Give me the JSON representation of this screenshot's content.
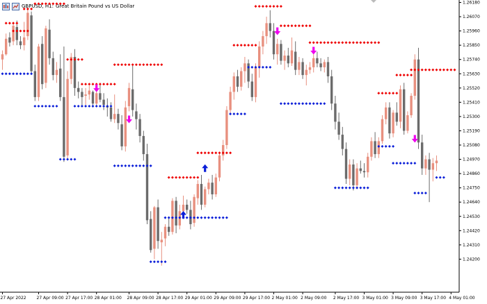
{
  "header": {
    "symbol": "GBPUSD, H1:",
    "description": "Great Britain Pound vs US Dollar"
  },
  "colors": {
    "bull": "#e8907f",
    "bear": "#6b6b6b",
    "resistance_dots": "#ee0000",
    "support_dots": "#0a1ed8",
    "sell_arrow": "#ee00ee",
    "buy_arrow": "#0a1ed8",
    "axis": "#000000"
  },
  "chart_data": {
    "type": "candlestick",
    "symbol": "GBPUSD",
    "timeframe": "H1",
    "y_axis": {
      "position": "right",
      "range": [
        1.2414,
        1.2618
      ],
      "ticks": [
        "1.26180",
        "1.26070",
        "1.25960",
        "1.25850",
        "1.25740",
        "1.25630",
        "1.25520",
        "1.25410",
        "1.25300",
        "1.25190",
        "1.25080",
        "1.24970",
        "1.24860",
        "1.24750",
        "1.24640",
        "1.24530",
        "1.24420",
        "1.24310",
        "1.24200"
      ]
    },
    "x_axis": {
      "labels": [
        {
          "bar": 0,
          "text": "27 Apr 2022"
        },
        {
          "bar": 10,
          "text": "27 Apr 09:00"
        },
        {
          "bar": 18,
          "text": "27 Apr 17:00"
        },
        {
          "bar": 26,
          "text": "28 Apr 01:00"
        },
        {
          "bar": 35,
          "text": "28 Apr 09:00"
        },
        {
          "bar": 43,
          "text": "28 Apr 17:00"
        },
        {
          "bar": 51,
          "text": "29 Apr 01:00"
        },
        {
          "bar": 59,
          "text": "29 Apr 09:00"
        },
        {
          "bar": 67,
          "text": "29 Apr 17:00"
        },
        {
          "bar": 75,
          "text": "2 May 01:00"
        },
        {
          "bar": 83,
          "text": "2 May 09:00"
        },
        {
          "bar": 92,
          "text": "2 May 17:00"
        },
        {
          "bar": 100,
          "text": "3 May 01:00"
        },
        {
          "bar": 108,
          "text": "3 May 09:00"
        },
        {
          "bar": 116,
          "text": "3 May 17:00"
        },
        {
          "bar": 124,
          "text": "4 May 01:00"
        }
      ]
    },
    "candles": [
      [
        1.2574,
        1.2581,
        1.2566,
        1.2578
      ],
      [
        1.2578,
        1.2594,
        1.2577,
        1.259
      ],
      [
        1.2591,
        1.2595,
        1.2584,
        1.2587
      ],
      [
        1.2588,
        1.2603,
        1.2585,
        1.26
      ],
      [
        1.2599,
        1.2604,
        1.2585,
        1.2589
      ],
      [
        1.2588,
        1.2592,
        1.2582,
        1.2585
      ],
      [
        1.2585,
        1.2603,
        1.2581,
        1.2591
      ],
      [
        1.2592,
        1.2613,
        1.2589,
        1.261
      ],
      [
        1.2608,
        1.2611,
        1.2563,
        1.2565
      ],
      [
        1.2565,
        1.257,
        1.2542,
        1.2545
      ],
      [
        1.2545,
        1.2586,
        1.2542,
        1.2584
      ],
      [
        1.2586,
        1.2592,
        1.2551,
        1.2555
      ],
      [
        1.2556,
        1.26,
        1.2552,
        1.2598
      ],
      [
        1.2597,
        1.2605,
        1.257,
        1.2575
      ],
      [
        1.2575,
        1.258,
        1.2558,
        1.2562
      ],
      [
        1.2562,
        1.2572,
        1.2556,
        1.2566
      ],
      [
        1.2567,
        1.2578,
        1.2542,
        1.2545
      ],
      [
        1.2545,
        1.2584,
        1.2495,
        1.2499
      ],
      [
        1.25,
        1.2565,
        1.2497,
        1.2559
      ],
      [
        1.2559,
        1.2579,
        1.2555,
        1.2576
      ],
      [
        1.2576,
        1.2582,
        1.2546,
        1.2552
      ],
      [
        1.2552,
        1.2557,
        1.2544,
        1.2549
      ],
      [
        1.2549,
        1.2552,
        1.2538,
        1.2545
      ],
      [
        1.2546,
        1.2552,
        1.2539,
        1.2547
      ],
      [
        1.2547,
        1.2554,
        1.2543,
        1.255
      ],
      [
        1.2549,
        1.255,
        1.2537,
        1.254
      ],
      [
        1.254,
        1.2551,
        1.2538,
        1.2548
      ],
      [
        1.2548,
        1.2556,
        1.2541,
        1.2543
      ],
      [
        1.2543,
        1.2548,
        1.2535,
        1.2539
      ],
      [
        1.2538,
        1.2544,
        1.253,
        1.2537
      ],
      [
        1.2537,
        1.2541,
        1.2526,
        1.2528
      ],
      [
        1.2528,
        1.2547,
        1.2525,
        1.2532
      ],
      [
        1.2532,
        1.2536,
        1.252,
        1.2525
      ],
      [
        1.2524,
        1.2531,
        1.2504,
        1.2507
      ],
      [
        1.2507,
        1.2542,
        1.2503,
        1.2537
      ],
      [
        1.2538,
        1.2556,
        1.2534,
        1.2552
      ],
      [
        1.2551,
        1.257,
        1.253,
        1.2535
      ],
      [
        1.2534,
        1.254,
        1.252,
        1.2528
      ],
      [
        1.2528,
        1.2532,
        1.251,
        1.2515
      ],
      [
        1.2515,
        1.2519,
        1.2496,
        1.2501
      ],
      [
        1.2501,
        1.2509,
        1.2447,
        1.245
      ],
      [
        1.2451,
        1.2457,
        1.2425,
        1.2427
      ],
      [
        1.2428,
        1.2461,
        1.242,
        1.246
      ],
      [
        1.246,
        1.2466,
        1.2428,
        1.2434
      ],
      [
        1.2433,
        1.2441,
        1.2415,
        1.2435
      ],
      [
        1.2436,
        1.2447,
        1.243,
        1.2445
      ],
      [
        1.2445,
        1.2453,
        1.2438,
        1.2441
      ],
      [
        1.2441,
        1.2467,
        1.2439,
        1.2465
      ],
      [
        1.2465,
        1.2468,
        1.244,
        1.2446
      ],
      [
        1.2446,
        1.2462,
        1.2443,
        1.2457
      ],
      [
        1.2457,
        1.2469,
        1.2452,
        1.2462
      ],
      [
        1.2462,
        1.2466,
        1.2455,
        1.2458
      ],
      [
        1.2458,
        1.2465,
        1.2443,
        1.2447
      ],
      [
        1.2448,
        1.247,
        1.2445,
        1.2468
      ],
      [
        1.2467,
        1.2481,
        1.2462,
        1.2478
      ],
      [
        1.2478,
        1.2485,
        1.2458,
        1.2462
      ],
      [
        1.2462,
        1.2476,
        1.246,
        1.2474
      ],
      [
        1.2474,
        1.2482,
        1.247,
        1.2479
      ],
      [
        1.2479,
        1.2485,
        1.2466,
        1.247
      ],
      [
        1.247,
        1.2486,
        1.2468,
        1.2483
      ],
      [
        1.2483,
        1.2502,
        1.248,
        1.25
      ],
      [
        1.25,
        1.2512,
        1.2496,
        1.2508
      ],
      [
        1.2508,
        1.2538,
        1.2505,
        1.2535
      ],
      [
        1.2535,
        1.2553,
        1.2531,
        1.2549
      ],
      [
        1.2549,
        1.2564,
        1.2543,
        1.2561
      ],
      [
        1.2561,
        1.2566,
        1.2549,
        1.2553
      ],
      [
        1.2553,
        1.2568,
        1.255,
        1.2565
      ],
      [
        1.2565,
        1.2576,
        1.2556,
        1.2571
      ],
      [
        1.2571,
        1.2574,
        1.2552,
        1.2557
      ],
      [
        1.2557,
        1.2563,
        1.2542,
        1.2545
      ],
      [
        1.2545,
        1.2571,
        1.2541,
        1.2568
      ],
      [
        1.2568,
        1.2588,
        1.256,
        1.2584
      ],
      [
        1.2584,
        1.2596,
        1.2578,
        1.2592
      ],
      [
        1.2592,
        1.2607,
        1.2586,
        1.2602
      ],
      [
        1.2602,
        1.2612,
        1.2591,
        1.2596
      ],
      [
        1.2596,
        1.2602,
        1.2574,
        1.2578
      ],
      [
        1.2578,
        1.259,
        1.257,
        1.2586
      ],
      [
        1.2586,
        1.2589,
        1.257,
        1.2573
      ],
      [
        1.2573,
        1.2581,
        1.2566,
        1.2577
      ],
      [
        1.2577,
        1.2583,
        1.2568,
        1.2571
      ],
      [
        1.2571,
        1.2591,
        1.2569,
        1.2581
      ],
      [
        1.258,
        1.2588,
        1.2562,
        1.2566
      ],
      [
        1.2566,
        1.2576,
        1.2562,
        1.2572
      ],
      [
        1.2572,
        1.2575,
        1.2559,
        1.2562
      ],
      [
        1.2562,
        1.257,
        1.2554,
        1.2566
      ],
      [
        1.2566,
        1.2572,
        1.2563,
        1.2568
      ],
      [
        1.2568,
        1.2578,
        1.2564,
        1.2575
      ],
      [
        1.2575,
        1.258,
        1.2568,
        1.2571
      ],
      [
        1.2571,
        1.2575,
        1.2565,
        1.2568
      ],
      [
        1.2568,
        1.2574,
        1.2564,
        1.2572
      ],
      [
        1.2572,
        1.2576,
        1.2556,
        1.2561
      ],
      [
        1.2561,
        1.2566,
        1.2535,
        1.254
      ],
      [
        1.254,
        1.2546,
        1.252,
        1.2526
      ],
      [
        1.2526,
        1.2533,
        1.2512,
        1.2516
      ],
      [
        1.2516,
        1.2522,
        1.25,
        1.2505
      ],
      [
        1.2505,
        1.251,
        1.2478,
        1.2482
      ],
      [
        1.2482,
        1.2497,
        1.2477,
        1.2493
      ],
      [
        1.2493,
        1.2497,
        1.2473,
        1.2477
      ],
      [
        1.2477,
        1.2494,
        1.2474,
        1.249
      ],
      [
        1.249,
        1.2496,
        1.2486,
        1.2488
      ],
      [
        1.2488,
        1.2494,
        1.2483,
        1.2487
      ],
      [
        1.2487,
        1.2502,
        1.2483,
        1.2499
      ],
      [
        1.2499,
        1.2514,
        1.2496,
        1.2511
      ],
      [
        1.2511,
        1.2518,
        1.2498,
        1.2501
      ],
      [
        1.2501,
        1.2514,
        1.2498,
        1.2511
      ],
      [
        1.2511,
        1.2531,
        1.2509,
        1.2528
      ],
      [
        1.2528,
        1.2541,
        1.2524,
        1.2537
      ],
      [
        1.2537,
        1.2541,
        1.2513,
        1.2517
      ],
      [
        1.2517,
        1.2535,
        1.2514,
        1.2533
      ],
      [
        1.2533,
        1.2541,
        1.2523,
        1.2526
      ],
      [
        1.2526,
        1.2554,
        1.2521,
        1.2551
      ],
      [
        1.2551,
        1.2556,
        1.2516,
        1.2519
      ],
      [
        1.2519,
        1.2534,
        1.2517,
        1.2531
      ],
      [
        1.2531,
        1.2548,
        1.2529,
        1.2546
      ],
      [
        1.2546,
        1.2578,
        1.2543,
        1.2574
      ],
      [
        1.2574,
        1.2583,
        1.2505,
        1.251
      ],
      [
        1.251,
        1.2516,
        1.2485,
        1.249
      ],
      [
        1.249,
        1.25,
        1.2485,
        1.2497
      ],
      [
        1.2497,
        1.2502,
        1.2464,
        1.2489
      ],
      [
        1.2489,
        1.2498,
        1.248,
        1.2494
      ],
      [
        1.2494,
        1.25,
        1.2488,
        1.2496
      ]
    ],
    "indicator": {
      "resistance_levels": [
        {
          "from": 1,
          "to": 4,
          "price": 1.2602
        },
        {
          "from": 3,
          "to": 7,
          "price": 1.2596
        },
        {
          "from": 6,
          "to": 8,
          "price": 1.2613
        },
        {
          "from": 9,
          "to": 17,
          "price": 1.2617
        },
        {
          "from": 18,
          "to": 22,
          "price": 1.2574
        },
        {
          "from": 22,
          "to": 31,
          "price": 1.2555
        },
        {
          "from": 31,
          "to": 44,
          "price": 1.257
        },
        {
          "from": 46,
          "to": 54,
          "price": 1.2483
        },
        {
          "from": 54,
          "to": 63,
          "price": 1.2502
        },
        {
          "from": 64,
          "to": 70,
          "price": 1.2585
        },
        {
          "from": 70,
          "to": 77,
          "price": 1.2615
        },
        {
          "from": 77,
          "to": 85,
          "price": 1.26
        },
        {
          "from": 85,
          "to": 104,
          "price": 1.2587
        },
        {
          "from": 104,
          "to": 109,
          "price": 1.2548
        },
        {
          "from": 109,
          "to": 113,
          "price": 1.2562
        },
        {
          "from": 113,
          "to": 125,
          "price": 1.2566
        }
      ],
      "support_levels": [
        {
          "from": 0,
          "to": 8,
          "price": 1.2563
        },
        {
          "from": 9,
          "to": 15,
          "price": 1.2538
        },
        {
          "from": 16,
          "to": 20,
          "price": 1.2497
        },
        {
          "from": 20,
          "to": 30,
          "price": 1.2538
        },
        {
          "from": 31,
          "to": 41,
          "price": 1.2492
        },
        {
          "from": 41,
          "to": 45,
          "price": 1.2418
        },
        {
          "from": 45,
          "to": 62,
          "price": 1.2452
        },
        {
          "from": 63,
          "to": 67,
          "price": 1.2532
        },
        {
          "from": 68,
          "to": 74,
          "price": 1.2568
        },
        {
          "from": 77,
          "to": 89,
          "price": 1.254
        },
        {
          "from": 92,
          "to": 101,
          "price": 1.2475
        },
        {
          "from": 104,
          "to": 108,
          "price": 1.2507
        },
        {
          "from": 108,
          "to": 114,
          "price": 1.2494
        },
        {
          "from": 114,
          "to": 117,
          "price": 1.2471
        },
        {
          "from": 120,
          "to": 122,
          "price": 1.2483
        }
      ],
      "sell_arrows": [
        {
          "bar": 26,
          "price": 1.2551
        },
        {
          "bar": 35,
          "price": 1.2527
        },
        {
          "bar": 76,
          "price": 1.2595
        },
        {
          "bar": 86,
          "price": 1.258
        },
        {
          "bar": 114,
          "price": 1.2512
        }
      ],
      "buy_arrows": [
        {
          "bar": 50,
          "price": 1.2455
        },
        {
          "bar": 56,
          "price": 1.2491
        }
      ]
    }
  }
}
